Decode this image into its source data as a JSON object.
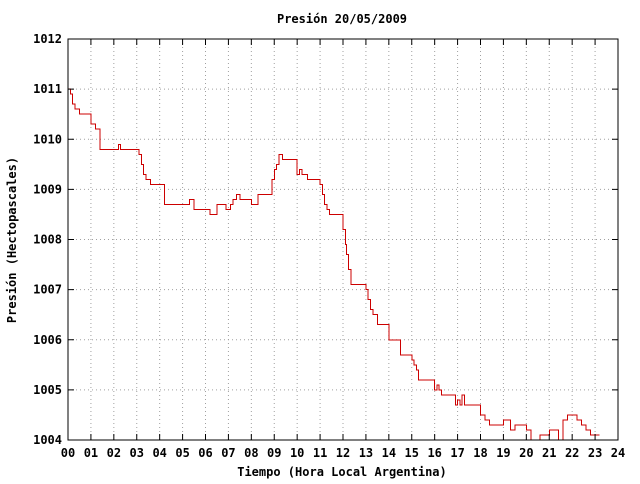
{
  "chart_data": {
    "type": "line",
    "title": "Presión 20/05/2009",
    "xlabel": "Tiempo (Hora Local Argentina)",
    "ylabel": "Presión (Hectopascales)",
    "xlim": [
      0,
      24
    ],
    "ylim": [
      1004,
      1012
    ],
    "x_ticks": [
      "00",
      "01",
      "02",
      "03",
      "04",
      "05",
      "06",
      "07",
      "08",
      "09",
      "10",
      "11",
      "12",
      "13",
      "14",
      "15",
      "16",
      "17",
      "18",
      "19",
      "20",
      "21",
      "22",
      "23",
      "24"
    ],
    "y_ticks": [
      "1004",
      "1005",
      "1006",
      "1007",
      "1008",
      "1009",
      "1010",
      "1011",
      "1012"
    ],
    "grid": true,
    "step": true,
    "series": [
      {
        "color": "#cc0000",
        "x": [
          0,
          0.1,
          0.2,
          0.3,
          0.5,
          0.7,
          1.0,
          1.2,
          1.4,
          1.6,
          2.2,
          2.3,
          2.4,
          3.0,
          3.1,
          3.2,
          3.3,
          3.4,
          3.6,
          4.0,
          4.2,
          5.0,
          5.3,
          5.5,
          6.0,
          6.2,
          6.35,
          6.5,
          6.9,
          7.0,
          7.1,
          7.2,
          7.35,
          7.5,
          7.6,
          8.0,
          8.3,
          8.7,
          8.9,
          9.0,
          9.1,
          9.2,
          9.35,
          9.5,
          10.0,
          10.1,
          10.2,
          10.3,
          10.45,
          10.6,
          11.0,
          11.1,
          11.2,
          11.3,
          11.4,
          11.5,
          12.0,
          12.1,
          12.15,
          12.25,
          12.35,
          12.5,
          13.0,
          13.1,
          13.2,
          13.3,
          13.4,
          13.5,
          13.6,
          13.9,
          14.0,
          14.1,
          14.5,
          14.6,
          15.0,
          15.1,
          15.2,
          15.3,
          15.4,
          15.5,
          16.0,
          16.1,
          16.2,
          16.3,
          16.5,
          16.9,
          17.0,
          17.1,
          17.2,
          17.3,
          17.5,
          18.0,
          18.1,
          18.2,
          18.4,
          18.6,
          19.0,
          19.3,
          19.5,
          19.8,
          20.0,
          20.2,
          20.5,
          20.6,
          21.0,
          21.2,
          21.4,
          21.6,
          21.8,
          22.0,
          22.2,
          22.4,
          22.6,
          22.8,
          23.0,
          23.2
        ],
        "values": [
          1011.0,
          1010.9,
          1010.7,
          1010.6,
          1010.5,
          1010.5,
          1010.3,
          1010.2,
          1009.8,
          1009.8,
          1009.9,
          1009.8,
          1009.8,
          1009.8,
          1009.7,
          1009.5,
          1009.3,
          1009.2,
          1009.1,
          1009.1,
          1008.7,
          1008.7,
          1008.8,
          1008.6,
          1008.6,
          1008.5,
          1008.5,
          1008.7,
          1008.6,
          1008.6,
          1008.7,
          1008.8,
          1008.9,
          1008.8,
          1008.8,
          1008.7,
          1008.9,
          1008.9,
          1009.2,
          1009.4,
          1009.5,
          1009.7,
          1009.6,
          1009.6,
          1009.3,
          1009.4,
          1009.3,
          1009.3,
          1009.2,
          1009.2,
          1009.1,
          1008.9,
          1008.7,
          1008.6,
          1008.5,
          1008.5,
          1008.2,
          1007.9,
          1007.7,
          1007.4,
          1007.1,
          1007.1,
          1007.0,
          1006.8,
          1006.6,
          1006.5,
          1006.5,
          1006.3,
          1006.3,
          1006.3,
          1006.0,
          1006.0,
          1005.7,
          1005.7,
          1005.6,
          1005.5,
          1005.4,
          1005.2,
          1005.2,
          1005.2,
          1005.0,
          1005.1,
          1005.0,
          1004.9,
          1004.9,
          1004.7,
          1004.8,
          1004.7,
          1004.9,
          1004.7,
          1004.7,
          1004.5,
          1004.5,
          1004.4,
          1004.3,
          1004.3,
          1004.4,
          1004.2,
          1004.3,
          1004.3,
          1004.2,
          1004.0,
          1004.0,
          1004.1,
          1004.2,
          1004.2,
          1004.0,
          1004.4,
          1004.5,
          1004.5,
          1004.4,
          1004.3,
          1004.2,
          1004.1,
          1004.1,
          1004.1
        ]
      }
    ]
  }
}
